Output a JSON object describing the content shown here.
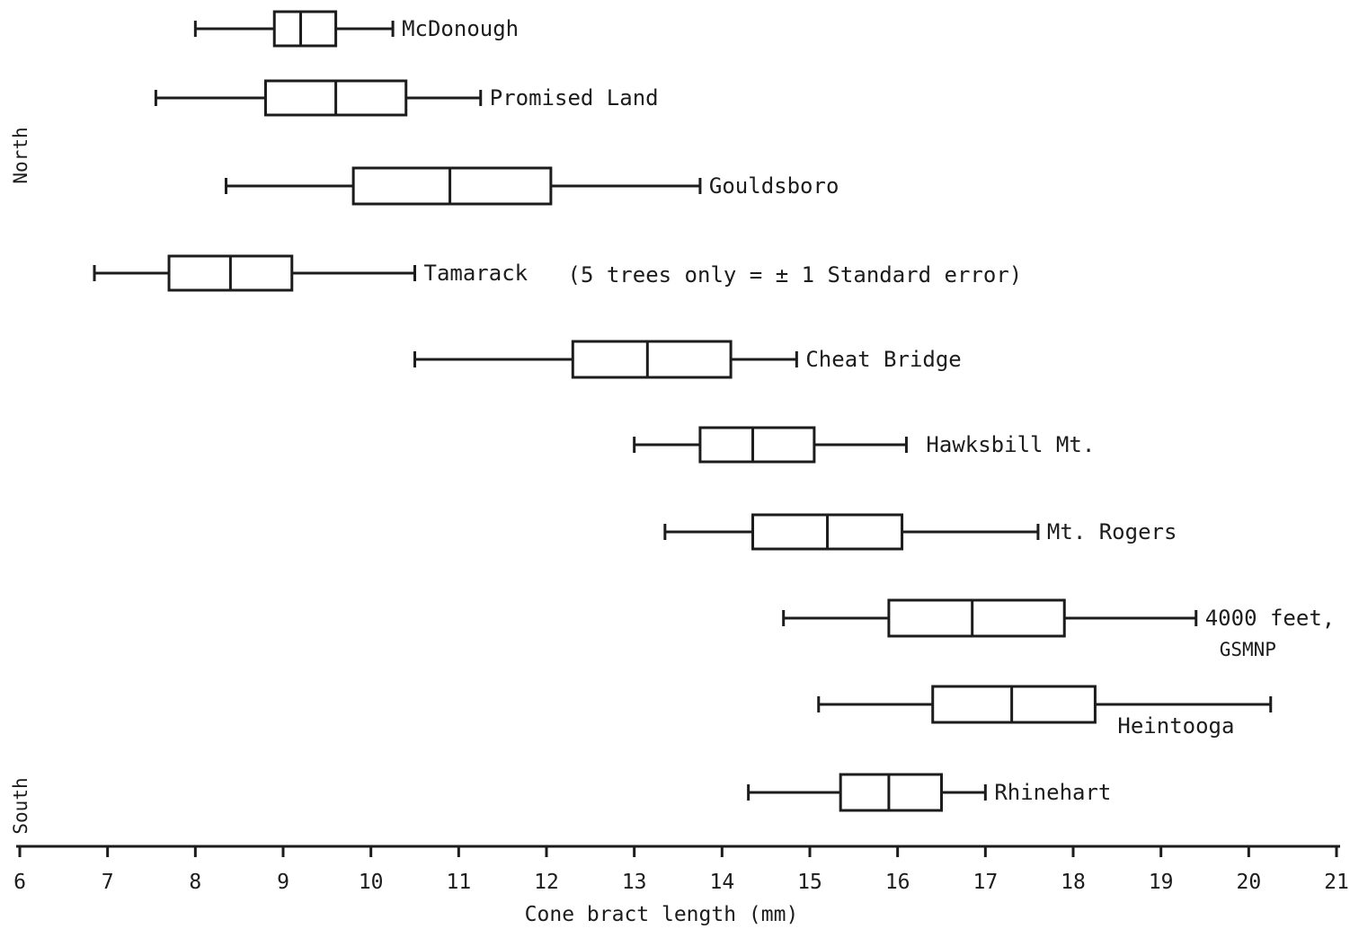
{
  "chart_data": {
    "type": "boxplot",
    "orientation": "horizontal",
    "xlabel": "Cone bract length (mm)",
    "xlim": [
      6,
      21
    ],
    "xticks": [
      6,
      7,
      8,
      9,
      10,
      11,
      12,
      13,
      14,
      15,
      16,
      17,
      18,
      19,
      20,
      21
    ],
    "ylabel_top": "North",
    "ylabel_bottom": "South",
    "series": [
      {
        "name": "McDonough",
        "label_lines": [
          "McDonough"
        ],
        "min": 8.0,
        "q1": 8.9,
        "median": 9.2,
        "q3": 9.6,
        "max": 10.25
      },
      {
        "name": "Promised Land",
        "label_lines": [
          "Promised Land"
        ],
        "min": 7.55,
        "q1": 8.8,
        "median": 9.6,
        "q3": 10.4,
        "max": 11.25
      },
      {
        "name": "Gouldsboro",
        "label_lines": [
          "Gouldsboro"
        ],
        "min": 8.35,
        "q1": 9.8,
        "median": 10.9,
        "q3": 12.05,
        "max": 13.75
      },
      {
        "name": "Tamarack",
        "label_lines": [
          "Tamarack"
        ],
        "min": 6.85,
        "q1": 7.7,
        "median": 8.4,
        "q3": 9.1,
        "max": 10.5,
        "note": "(5 trees only = ± 1 Standard error)"
      },
      {
        "name": "Cheat Bridge",
        "label_lines": [
          "Cheat Bridge"
        ],
        "min": 10.5,
        "q1": 12.3,
        "median": 13.15,
        "q3": 14.1,
        "max": 14.85
      },
      {
        "name": "Hawksbill Mt.",
        "label_lines": [
          "Hawksbill Mt."
        ],
        "min": 13.0,
        "q1": 13.75,
        "median": 14.35,
        "q3": 15.05,
        "max": 16.1
      },
      {
        "name": "Mt. Rogers",
        "label_lines": [
          "Mt. Rogers"
        ],
        "min": 13.35,
        "q1": 14.35,
        "median": 15.2,
        "q3": 16.05,
        "max": 17.6
      },
      {
        "name": "4000 feet, GSMNP",
        "label_lines": [
          "4000 feet,",
          "GSMNP"
        ],
        "min": 14.7,
        "q1": 15.9,
        "median": 16.85,
        "q3": 17.9,
        "max": 19.4
      },
      {
        "name": "Heintooga",
        "label_lines": [
          "Heintooga"
        ],
        "min": 15.1,
        "q1": 16.4,
        "median": 17.3,
        "q3": 18.25,
        "max": 20.25
      },
      {
        "name": "Rhinehart",
        "label_lines": [
          "Rhinehart"
        ],
        "min": 14.3,
        "q1": 15.35,
        "median": 15.9,
        "q3": 16.5,
        "max": 17.0
      }
    ]
  }
}
